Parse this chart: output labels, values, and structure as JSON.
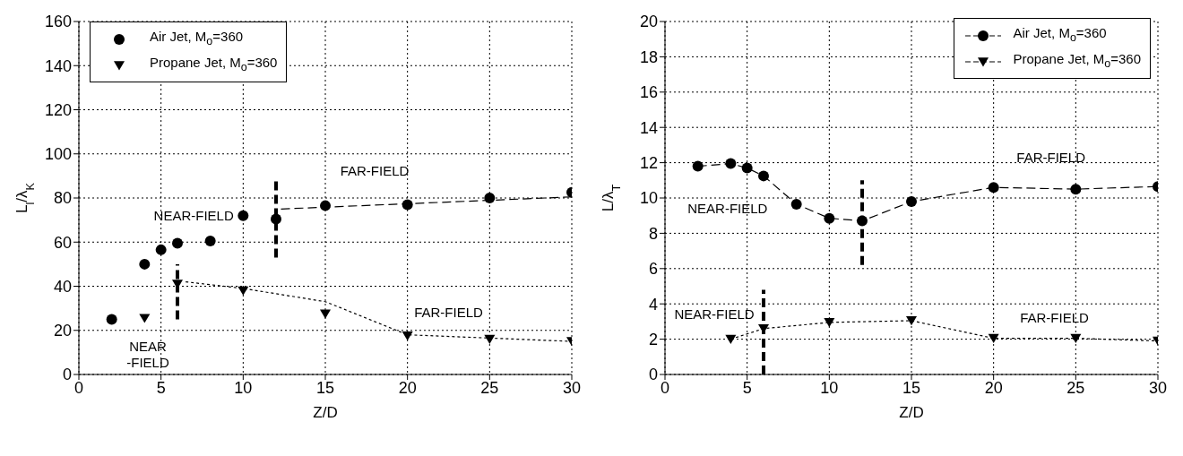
{
  "chart_data": [
    {
      "type": "scatter",
      "xlabel": "Z/D",
      "ylabel": "L$_{l}$/λ$_{K}$",
      "xlim": [
        0,
        30
      ],
      "xticks": [
        0,
        5,
        10,
        15,
        20,
        25,
        30
      ],
      "ylim": [
        0,
        160
      ],
      "yticks": [
        0,
        20,
        40,
        60,
        80,
        100,
        120,
        140,
        160
      ],
      "grid": true,
      "legend": "top left",
      "series": [
        {
          "name": "Air Jet, M$_{o}$=360",
          "marker": "circle",
          "color": "#000000",
          "x": [
            2,
            4,
            5,
            6,
            8,
            10,
            12,
            15,
            20,
            25,
            30
          ],
          "values": [
            25,
            50,
            56.5,
            59.5,
            60.5,
            72,
            70.5,
            76.5,
            77,
            80,
            82.5
          ]
        },
        {
          "name": "Propane Jet, M$_{o}$=360",
          "marker": "triangle",
          "color": "#000000",
          "x": [
            4,
            6,
            10,
            15,
            20,
            25,
            30
          ],
          "values": [
            25.5,
            41,
            38,
            27.5,
            17.5,
            16,
            15
          ]
        },
        {
          "type": "line",
          "marker": "none",
          "line_style": "dashed",
          "color": "#000000",
          "x": [
            12.3,
            30
          ],
          "values": [
            75,
            80.5
          ]
        },
        {
          "type": "line",
          "marker": "none",
          "line_style": "dotted",
          "color": "#000000",
          "x": [
            6.5,
            10,
            15,
            20,
            25,
            30
          ],
          "values": [
            42,
            39,
            33,
            18,
            16.5,
            15
          ]
        },
        {
          "type": "line",
          "marker": "none",
          "line_style": "dashed",
          "color": "#000000",
          "x": [
            12,
            12
          ],
          "values": [
            53,
            88
          ]
        },
        {
          "type": "line",
          "marker": "none",
          "line_style": "dashed",
          "color": "#000000",
          "x": [
            6,
            6
          ],
          "values": [
            25,
            50
          ]
        }
      ],
      "annotations": [
        "FAR-FIELD",
        "NEAR-FIELD",
        "FAR-FIELD",
        "NEAR\n-FIELD"
      ]
    },
    {
      "type": "line",
      "xlabel": "Z/D",
      "ylabel": "L/λ$_{T}$",
      "xlim": [
        0,
        30
      ],
      "xticks": [
        0,
        5,
        10,
        15,
        20,
        25,
        30
      ],
      "ylim": [
        0,
        20
      ],
      "yticks": [
        0,
        2,
        4,
        6,
        8,
        10,
        12,
        14,
        16,
        18,
        20
      ],
      "grid": true,
      "legend": "top right",
      "series": [
        {
          "name": "Air Jet, M$_{o}$=360",
          "marker": "circle",
          "line_style": "dashed",
          "color": "#000000",
          "x": [
            2,
            4,
            5,
            6,
            8,
            10,
            12,
            15,
            20,
            25,
            30
          ],
          "values": [
            11.8,
            11.95,
            11.7,
            11.25,
            9.65,
            8.85,
            8.7,
            9.8,
            10.6,
            10.5,
            10.65
          ]
        },
        {
          "name": "Propane Jet, M$_{o}$=360",
          "marker": "triangle",
          "line_style": "dotted",
          "color": "#000000",
          "x": [
            4,
            6,
            10,
            15,
            20,
            25,
            30
          ],
          "values": [
            2,
            2.6,
            2.95,
            3.05,
            2.05,
            2.05,
            1.9
          ]
        },
        {
          "marker": "none",
          "line_style": "dashed",
          "color": "#000000",
          "x": [
            12,
            12
          ],
          "values": [
            6.2,
            11
          ]
        },
        {
          "marker": "none",
          "line_style": "dashed",
          "color": "#000000",
          "x": [
            6,
            6
          ],
          "values": [
            0,
            4.8
          ]
        }
      ],
      "annotations": [
        "FAR-FIELD",
        "NEAR-FIELD",
        "NEAR-FIELD",
        "FAR-FIELD"
      ]
    }
  ]
}
